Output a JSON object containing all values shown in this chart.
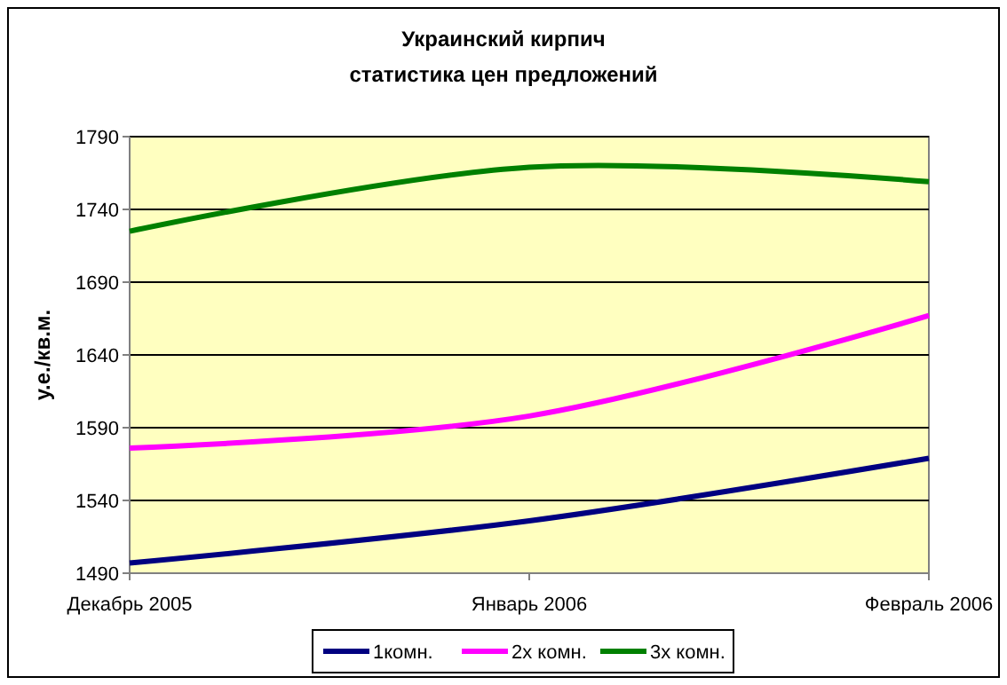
{
  "chart_data": {
    "type": "line",
    "title": "Украинский кирпич\nстатистика цен предложений",
    "ylabel": "у.е./кв.м.",
    "categories": [
      "Декабрь 2005",
      "Январь 2006",
      "Февраль 2006"
    ],
    "series": [
      {
        "name": "1комн.",
        "color": "#000080",
        "values": [
          1497,
          1526,
          1569
        ]
      },
      {
        "name": "2х комн.",
        "color": "#ff00ff",
        "values": [
          1576,
          1598,
          1667
        ]
      },
      {
        "name": "3х комн.",
        "color": "#008000",
        "values": [
          1725,
          1769,
          1759
        ]
      }
    ],
    "ylim": [
      1490,
      1790
    ],
    "yticks": [
      1490,
      1540,
      1590,
      1640,
      1690,
      1740,
      1790
    ],
    "grid": "y",
    "legend": "bottom",
    "marker": "none",
    "line_style": "solid"
  }
}
